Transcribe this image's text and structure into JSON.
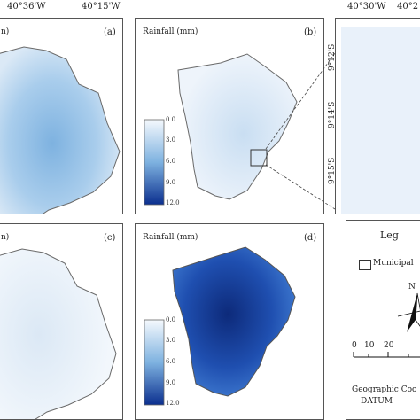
{
  "top_coords": [
    "40°36'W",
    "40°15'W",
    "40°30'W",
    "40°2"
  ],
  "side_coords": [
    "9°12'S",
    "9°14'S",
    "9°15'S"
  ],
  "panels": [
    {
      "id": "a",
      "title": "n)",
      "label": "(a)",
      "theme": "mid"
    },
    {
      "id": "b",
      "title": "Rainfall (mm)",
      "label": "(b)",
      "theme": "light"
    },
    {
      "id": "c",
      "title": "n)",
      "label": "(c)",
      "theme": "verylight"
    },
    {
      "id": "d",
      "title": "Rainfall (mm)",
      "label": "(d)",
      "theme": "dark"
    }
  ],
  "colorbar_ticks": [
    "0.0",
    "3.0",
    "6.0",
    "9.0",
    "12.0"
  ],
  "legend": {
    "title": "Leg",
    "municipal_label": "Municipal",
    "north_label": "N",
    "scale_labels": [
      "0",
      "10",
      "20"
    ],
    "footer_line1": "Geographic Coo",
    "footer_line2": "DATUM"
  },
  "colors": {
    "light": "#e6f0f9",
    "mid": "#9cc4e8",
    "dark": "#1a3f9e",
    "outline": "#6a6a6a"
  }
}
